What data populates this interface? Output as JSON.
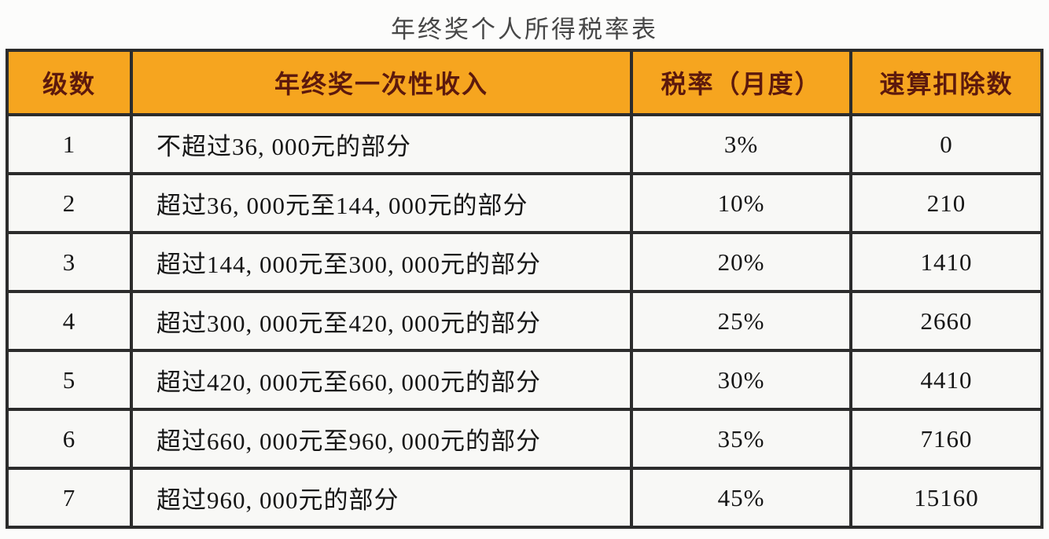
{
  "page_title": "年终奖个人所得税率表",
  "chart_data": {
    "type": "table",
    "title": "年终奖个人所得税率表",
    "columns": [
      "级数",
      "年终奖一次性收入",
      "税率（月度）",
      "速算扣除数"
    ],
    "rows": [
      [
        "1",
        "不超过36, 000元的部分",
        "3%",
        "0"
      ],
      [
        "2",
        "超过36, 000元至144, 000元的部分",
        "10%",
        "210"
      ],
      [
        "3",
        "超过144, 000元至300, 000元的部分",
        "20%",
        "1410"
      ],
      [
        "4",
        "超过300, 000元至420, 000元的部分",
        "25%",
        "2660"
      ],
      [
        "5",
        "超过420, 000元至660, 000元的部分",
        "30%",
        "4410"
      ],
      [
        "6",
        "超过660, 000元至960, 000元的部分",
        "35%",
        "7160"
      ],
      [
        "7",
        "超过960, 000元的部分",
        "45%",
        "15160"
      ]
    ],
    "layout": {
      "header_position": "top-row",
      "grid": "on",
      "column_alignment": [
        "center",
        "left",
        "center",
        "center"
      ]
    }
  },
  "colors": {
    "header_background": "#f6a51f",
    "header_text": "#5c190d",
    "cell_background": "#f8f8f6",
    "cell_text": "#161616",
    "border": "#2c2c2c",
    "title_text": "#474747",
    "page_background": "#fcfcfb"
  }
}
